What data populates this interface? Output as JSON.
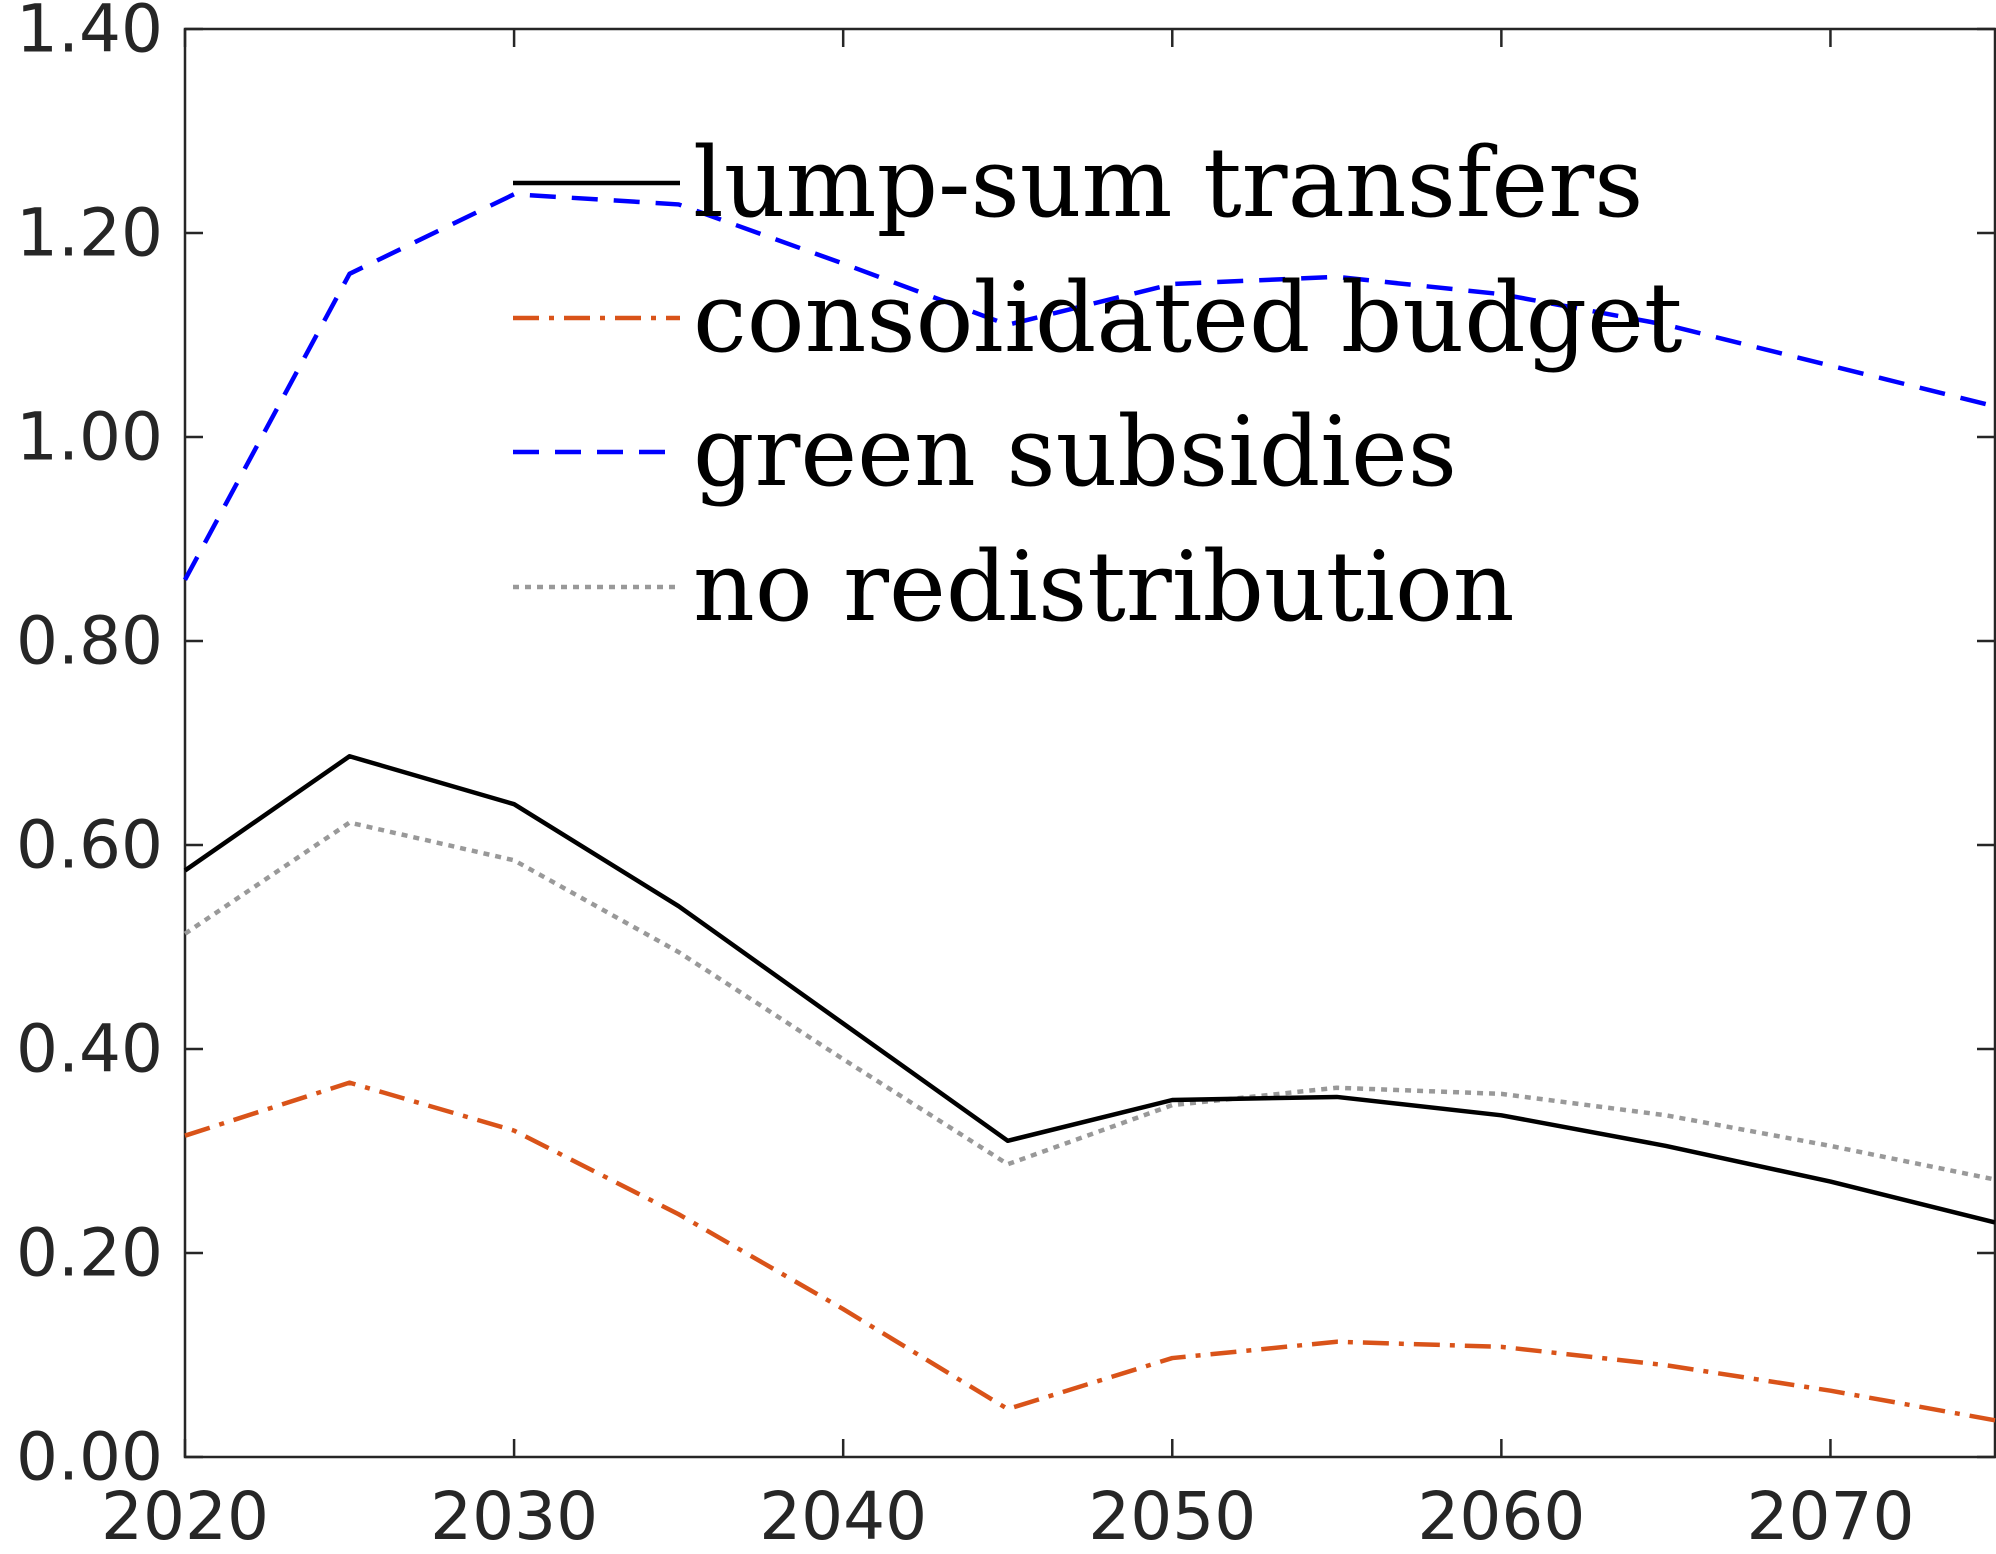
{
  "chart_data": {
    "type": "line",
    "title": "",
    "xlabel": "",
    "ylabel": "",
    "xlim": [
      2020,
      2075
    ],
    "ylim": [
      0,
      1.4
    ],
    "x_ticks": [
      2020,
      2030,
      2040,
      2050,
      2060,
      2070
    ],
    "x_tick_labels": [
      "2020",
      "2030",
      "2040",
      "2050",
      "2060",
      "2070"
    ],
    "y_ticks": [
      0,
      0.2,
      0.4,
      0.6,
      0.8,
      1.0,
      1.2,
      1.4
    ],
    "y_tick_labels": [
      "0.00",
      "0.20",
      "0.40",
      "0.60",
      "0.80",
      "1.00",
      "1.20",
      "1.40"
    ],
    "grid": false,
    "legend_position": "top-center",
    "x": [
      2020,
      2025,
      2030,
      2035,
      2040,
      2045,
      2050,
      2055,
      2060,
      2065,
      2070,
      2075
    ],
    "series": [
      {
        "name": "lump-sum transfers",
        "color": "#000000",
        "dash": "solid",
        "values": [
          0.575,
          0.687,
          0.64,
          0.54,
          0.425,
          0.31,
          0.35,
          0.353,
          0.335,
          0.305,
          0.27,
          0.23
        ]
      },
      {
        "name": "consolidated budget",
        "color": "#D95319",
        "dash": "dashdot",
        "values": [
          0.315,
          0.367,
          0.32,
          0.238,
          0.145,
          0.047,
          0.097,
          0.113,
          0.108,
          0.09,
          0.065,
          0.036
        ]
      },
      {
        "name": "green subsidies",
        "color": "#0000FF",
        "dash": "dashed",
        "values": [
          0.86,
          1.16,
          1.238,
          1.228,
          1.17,
          1.11,
          1.15,
          1.157,
          1.14,
          1.11,
          1.07,
          1.03
        ]
      },
      {
        "name": "no redistribution",
        "color": "#999999",
        "dash": "dotted",
        "values": [
          0.513,
          0.622,
          0.585,
          0.495,
          0.39,
          0.287,
          0.345,
          0.362,
          0.356,
          0.335,
          0.305,
          0.272
        ]
      }
    ]
  }
}
